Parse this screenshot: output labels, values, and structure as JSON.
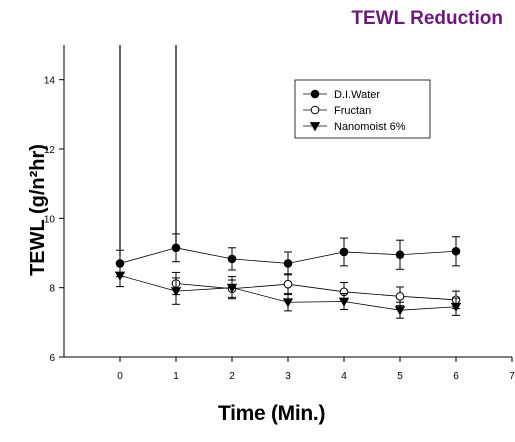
{
  "chart_data": {
    "type": "line",
    "title": "TEWL Reduction",
    "xlabel": "Time (Min.)",
    "ylabel": "TEWL (g/n²hr)",
    "xlim": [
      -1,
      7
    ],
    "ylim": [
      6,
      15
    ],
    "xticks": [
      0,
      1,
      2,
      3,
      4,
      5,
      6,
      7
    ],
    "yticks": [
      6,
      8,
      10,
      12,
      14
    ],
    "legend_position": "top-right",
    "series": [
      {
        "name": "D.I.Water",
        "marker": "filled-circle",
        "x": [
          0,
          1,
          2,
          3,
          4,
          5,
          6
        ],
        "y": [
          8.7,
          9.15,
          8.83,
          8.7,
          9.03,
          8.95,
          9.05
        ],
        "err": [
          0.38,
          0.4,
          0.32,
          0.33,
          0.4,
          0.42,
          0.42
        ]
      },
      {
        "name": "Fructan",
        "marker": "open-circle",
        "x": [
          1,
          2,
          3,
          4,
          5,
          6
        ],
        "y": [
          8.12,
          7.97,
          8.1,
          7.88,
          7.75,
          7.65
        ],
        "err": [
          0.32,
          0.25,
          0.3,
          0.27,
          0.27,
          0.25
        ]
      },
      {
        "name": "Nanomoist 6%",
        "marker": "filled-triangle-down",
        "x": [
          0,
          1,
          2,
          3,
          4,
          5,
          6
        ],
        "y": [
          8.35,
          7.9,
          8.0,
          7.58,
          7.6,
          7.35,
          7.45
        ],
        "err": [
          0.32,
          0.38,
          0.32,
          0.25,
          0.23,
          0.23,
          0.25
        ]
      }
    ],
    "spikes": [
      {
        "x": 0,
        "y_top": 15,
        "y_bottom": 8.9
      },
      {
        "x": 1,
        "y_top": 15,
        "y_bottom": 9.2
      }
    ]
  }
}
